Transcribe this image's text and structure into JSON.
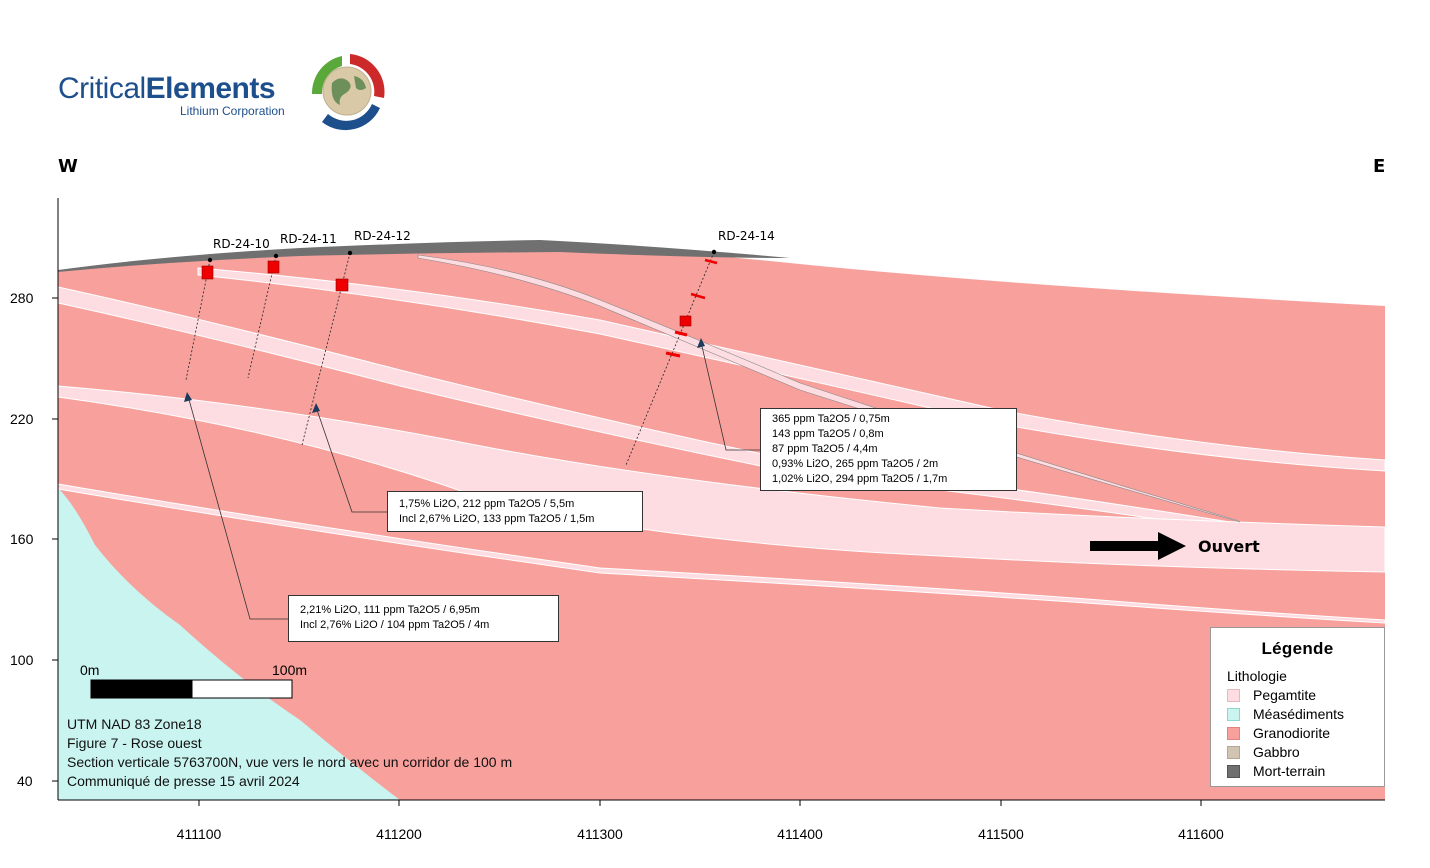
{
  "brand": {
    "word_regular": "Critical",
    "word_bold": "Elements",
    "subtitle": "Lithium Corporation"
  },
  "compass": {
    "west": "W",
    "east": "E"
  },
  "y_axis": {
    "ticks": [
      "280",
      "220",
      "160",
      "100",
      "40"
    ]
  },
  "x_axis": {
    "ticks": [
      "411100",
      "411200",
      "411300",
      "411400",
      "411500",
      "411600"
    ]
  },
  "holes": [
    "RD-24-10",
    "RD-24-11",
    "RD-24-12",
    "RD-24-14"
  ],
  "callouts": {
    "rd14": [
      "365 ppm Ta2O5 / 0,75m",
      "143 ppm Ta2O5 / 0,8m",
      "87 ppm Ta2O5 / 4,4m",
      "0,93% Li2O, 265 ppm Ta2O5 / 2m",
      "1,02% Li2O, 294 ppm Ta2O5 / 1,7m"
    ],
    "rd12": [
      "1,75% Li2O, 212 ppm Ta2O5 / 5,5m",
      "Incl 2,67% Li2O, 133 ppm Ta2O5 / 1,5m"
    ],
    "rd10": [
      "2,21% Li2O, 111 ppm Ta2O5 / 6,95m",
      "Incl 2,76% Li2O / 104 ppm Ta2O5 / 4m"
    ]
  },
  "open_label": "Ouvert",
  "scale_bar": {
    "start": "0m",
    "end": "100m"
  },
  "notes": [
    "UTM NAD 83 Zone18",
    "Figure 7 - Rose ouest",
    "Section verticale 5763700N, vue vers le nord avec un corridor de 100 m",
    "Communiqué de presse 15 avril 2024"
  ],
  "legend": {
    "title": "Légende",
    "subtitle": "Lithologie",
    "items": [
      {
        "label": "Pegamtite",
        "color": "#fddde2"
      },
      {
        "label": "Méasédiments",
        "color": "#c9f4f0"
      },
      {
        "label": "Granodiorite",
        "color": "#f7a09c"
      },
      {
        "label": "Gabbro",
        "color": "#d2c4b3"
      },
      {
        "label": "Mort-terrain",
        "color": "#707070"
      }
    ]
  },
  "colors": {
    "granodiorite": "#f7a09c",
    "pegmatite": "#fddde2",
    "metasediment": "#c9f4f0",
    "overburden": "#707070",
    "mineralized": "#ee0000"
  }
}
